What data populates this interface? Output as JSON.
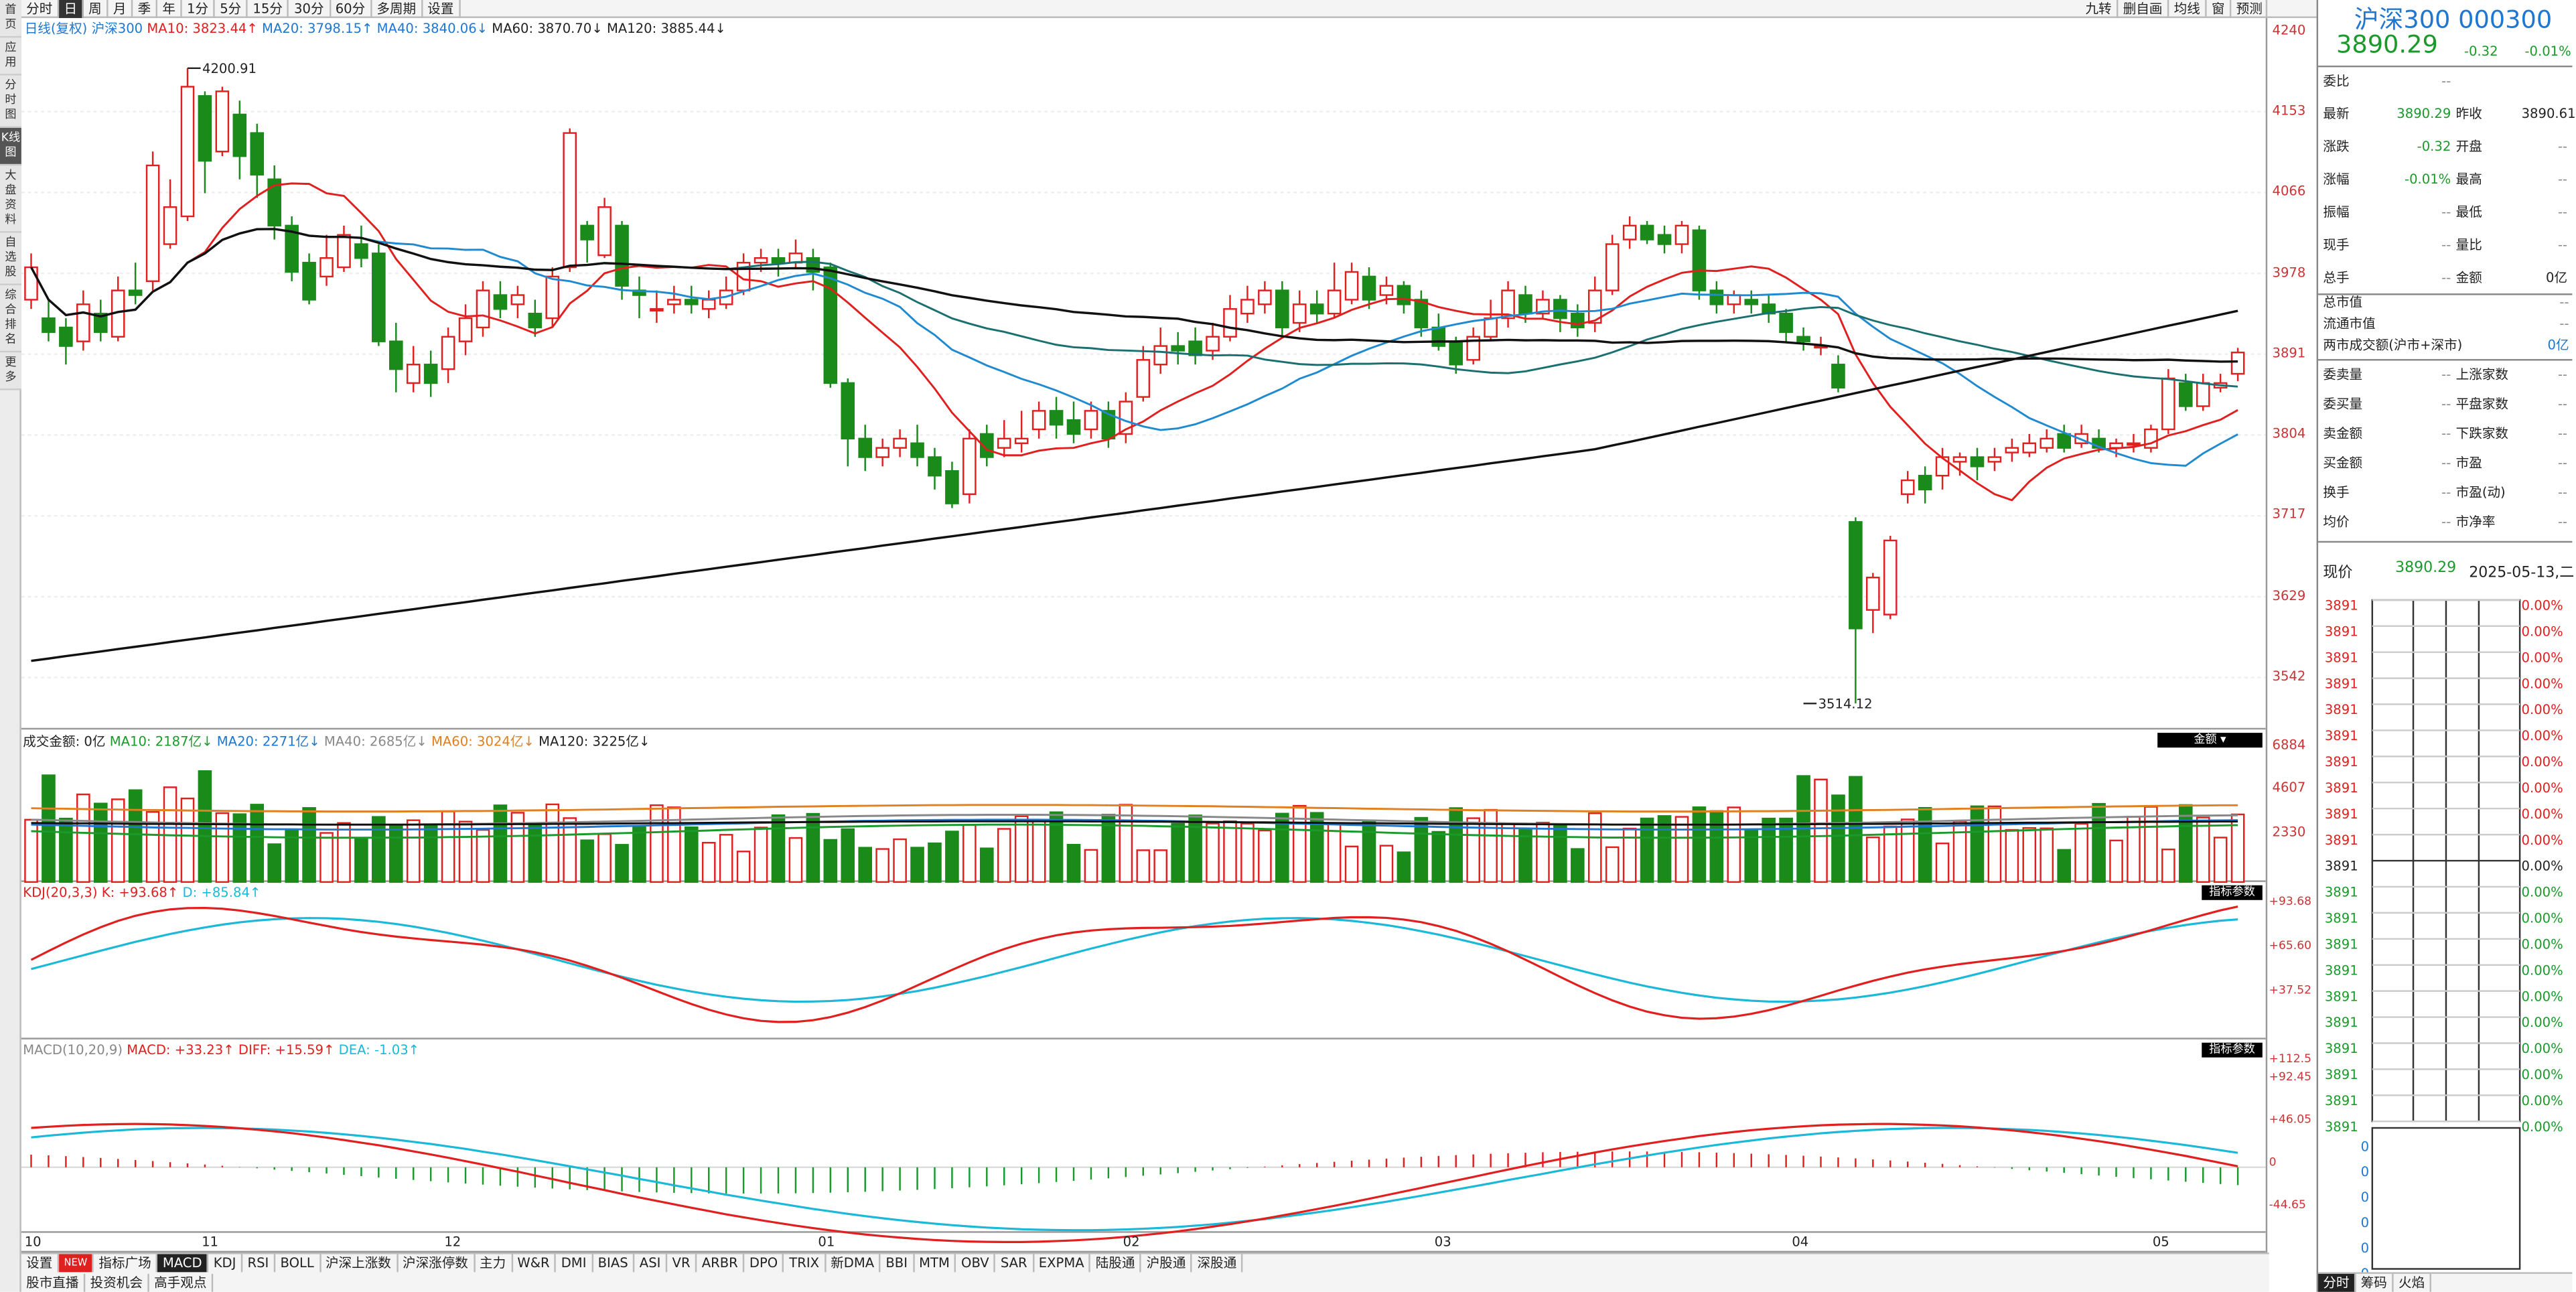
{
  "left_sidebar": [
    "首页",
    "应用",
    "分时图",
    "K线图",
    "大盘资料",
    "自选股",
    "综合排名",
    "更多"
  ],
  "toolbar": {
    "tabs": [
      "分时",
      "日",
      "周",
      "月",
      "季",
      "年",
      "1分",
      "5分",
      "15分",
      "30分",
      "60分",
      "多周期",
      "设置"
    ],
    "selected": "日",
    "right": [
      "九转",
      "删自画",
      "均线",
      "窗",
      "预测"
    ]
  },
  "header": {
    "period": "日线(复权)",
    "index": "沪深300",
    "ma10": "MA10: 3823.44↑",
    "ma20": "MA20: 3798.15↑",
    "ma40": "MA40: 3840.06↓",
    "ma60": "MA60: 3870.70↓",
    "ma120": "MA120: 3885.44↓"
  },
  "annotations": {
    "high": "4200.91",
    "low": "3514.12"
  },
  "price_axis": [
    "4240",
    "4153",
    "4066",
    "3978",
    "3891",
    "3804",
    "3717",
    "3629",
    "3542"
  ],
  "volume": {
    "title": "成交金额: 0亿",
    "ma10": "MA10: 2187亿↓",
    "ma20": "MA20: 2271亿↓",
    "ma40": "MA40: 2685亿↓",
    "ma60": "MA60: 3024亿↓",
    "ma120": "MA120: 3225亿↓",
    "axis": [
      "6884",
      "4607",
      "2330"
    ],
    "btn": "金额"
  },
  "kdj": {
    "title": "KDJ(20,3,3)",
    "k": "K: +93.68↑",
    "d": "D: +85.84↑",
    "axis": [
      "+93.68",
      "+65.60",
      "+37.52"
    ],
    "btn": "指标参数"
  },
  "macd": {
    "title": "MACD(10,20,9)",
    "macd": "MACD: +33.23↑",
    "diff": "DIFF: +15.59↑",
    "dea": "DEA: -1.03↑",
    "axis": [
      "+112.5",
      "+92.45",
      "+46.05",
      "0",
      "-44.65"
    ],
    "btn": "指标参数"
  },
  "date_axis": [
    "10",
    "11",
    "12",
    "01",
    "02",
    "03",
    "04",
    "05"
  ],
  "indicator_tabs": [
    "设置",
    "NEW",
    "指标广场",
    "MACD",
    "KDJ",
    "RSI",
    "BOLL",
    "沪深上涨数",
    "沪深涨停数",
    "主力",
    "W&R",
    "DMI",
    "BIAS",
    "ASI",
    "VR",
    "ARBR",
    "DPO",
    "TRIX",
    "新DMA",
    "BBI",
    "MTM",
    "OBV",
    "SAR",
    "EXPMA",
    "陆股通",
    "沪股通",
    "深股通"
  ],
  "selected_indicator": "MACD",
  "bottom_tabs": [
    "股市直播",
    "投资机会",
    "高手观点"
  ],
  "quote": {
    "name": "沪深300 000300",
    "price": "3890.29",
    "change": "-0.32",
    "pct": "-0.01%",
    "rows": [
      [
        "委比",
        "--",
        "",
        ""
      ],
      [
        "最新",
        "3890.29",
        "昨收",
        "3890.61"
      ],
      [
        "涨跌",
        "-0.32",
        "开盘",
        "--"
      ],
      [
        "涨幅",
        "-0.01%",
        "最高",
        "--"
      ],
      [
        "振幅",
        "--",
        "最低",
        "--"
      ],
      [
        "现手",
        "--",
        "量比",
        "--"
      ],
      [
        "总手",
        "--",
        "金额",
        "0亿"
      ]
    ],
    "rows2": [
      [
        "总市值",
        "--"
      ],
      [
        "流通市值",
        "--"
      ],
      [
        "两市成交额(沪市+深市)",
        "0亿"
      ]
    ],
    "rows3": [
      [
        "委卖量",
        "--",
        "上涨家数",
        "--"
      ],
      [
        "委买量",
        "--",
        "平盘家数",
        "--"
      ],
      [
        "卖金额",
        "--",
        "下跌家数",
        "--"
      ],
      [
        "买金额",
        "--",
        "市盈",
        "--"
      ],
      [
        "换手",
        "--",
        "市盈(动)",
        "--"
      ],
      [
        "均价",
        "--",
        "市净率",
        "--"
      ]
    ],
    "now_label": "现价",
    "now_price": "3890.29",
    "date": "2025-05-13,二"
  },
  "mini_chart": {
    "prices_top": [
      "3891",
      "3891",
      "3891",
      "3891",
      "3891",
      "3891",
      "3891",
      "3891",
      "3891",
      "3891"
    ],
    "mid": "3891",
    "prices_bot": [
      "3891",
      "3891",
      "3891",
      "3891",
      "3891",
      "3891",
      "3891",
      "3891",
      "3891",
      "3891"
    ],
    "pcts": "0.00%",
    "bottom_zeros": [
      "0",
      "0",
      "0",
      "0",
      "0",
      "0"
    ]
  },
  "right_bottom_tabs": [
    "分时",
    "筹码",
    "火焰"
  ],
  "chart_data": {
    "type": "candlestick",
    "ylim": [
      3500,
      4240
    ],
    "x_labels": [
      "10",
      "11",
      "12",
      "01",
      "02",
      "03",
      "04",
      "05"
    ],
    "candles": [
      [
        3950,
        3985,
        4000,
        3940
      ],
      [
        3930,
        3915,
        3950,
        3905
      ],
      [
        3920,
        3900,
        3930,
        3880
      ],
      [
        3905,
        3945,
        3960,
        3895
      ],
      [
        3935,
        3915,
        3950,
        3905
      ],
      [
        3910,
        3960,
        3975,
        3905
      ],
      [
        3960,
        3955,
        3990,
        3945
      ],
      [
        3970,
        4095,
        4110,
        3960
      ],
      [
        4010,
        4050,
        4080,
        4005
      ],
      [
        4040,
        4180,
        4200,
        4035
      ],
      [
        4170,
        4100,
        4175,
        4065
      ],
      [
        4110,
        4175,
        4180,
        4105
      ],
      [
        4150,
        4105,
        4165,
        4080
      ],
      [
        4130,
        4085,
        4140,
        4060
      ],
      [
        4080,
        4030,
        4095,
        4015
      ],
      [
        4030,
        3980,
        4040,
        3970
      ],
      [
        3990,
        3950,
        4000,
        3945
      ],
      [
        3975,
        3995,
        4020,
        3965
      ],
      [
        3985,
        4020,
        4030,
        3980
      ],
      [
        4010,
        3995,
        4030,
        3985
      ],
      [
        4000,
        3905,
        4010,
        3900
      ],
      [
        3905,
        3875,
        3925,
        3850
      ],
      [
        3860,
        3880,
        3900,
        3850
      ],
      [
        3880,
        3860,
        3895,
        3845
      ],
      [
        3875,
        3910,
        3920,
        3860
      ],
      [
        3905,
        3930,
        3945,
        3890
      ],
      [
        3920,
        3960,
        3970,
        3910
      ],
      [
        3955,
        3940,
        3970,
        3930
      ],
      [
        3945,
        3955,
        3965,
        3930
      ],
      [
        3935,
        3920,
        3950,
        3910
      ],
      [
        3930,
        3975,
        3985,
        3920
      ],
      [
        3985,
        4130,
        4135,
        3980
      ],
      [
        4030,
        4015,
        4035,
        3990
      ],
      [
        3998,
        4050,
        4060,
        3995
      ],
      [
        4030,
        3965,
        4035,
        3950
      ],
      [
        3960,
        3955,
        3975,
        3930
      ],
      [
        3940,
        3940,
        3960,
        3925
      ],
      [
        3945,
        3950,
        3965,
        3935
      ],
      [
        3950,
        3945,
        3965,
        3935
      ],
      [
        3940,
        3950,
        3960,
        3930
      ],
      [
        3945,
        3960,
        3975,
        3940
      ],
      [
        3960,
        3990,
        4000,
        3955
      ],
      [
        3990,
        3995,
        4005,
        3980
      ],
      [
        3995,
        3990,
        4005,
        3975
      ],
      [
        3990,
        4000,
        4015,
        3985
      ],
      [
        3995,
        3980,
        4005,
        3960
      ],
      [
        3985,
        3860,
        3990,
        3855
      ],
      [
        3860,
        3800,
        3865,
        3770
      ],
      [
        3800,
        3780,
        3815,
        3765
      ],
      [
        3780,
        3790,
        3800,
        3770
      ],
      [
        3790,
        3800,
        3810,
        3780
      ],
      [
        3795,
        3780,
        3815,
        3770
      ],
      [
        3780,
        3760,
        3790,
        3745
      ],
      [
        3765,
        3730,
        3775,
        3725
      ],
      [
        3740,
        3800,
        3810,
        3730
      ],
      [
        3805,
        3780,
        3815,
        3770
      ],
      [
        3790,
        3800,
        3820,
        3780
      ],
      [
        3795,
        3800,
        3830,
        3785
      ],
      [
        3810,
        3830,
        3840,
        3800
      ],
      [
        3830,
        3815,
        3845,
        3800
      ],
      [
        3820,
        3805,
        3840,
        3795
      ],
      [
        3810,
        3830,
        3840,
        3800
      ],
      [
        3830,
        3800,
        3840,
        3790
      ],
      [
        3805,
        3840,
        3850,
        3795
      ],
      [
        3845,
        3885,
        3900,
        3840
      ],
      [
        3880,
        3900,
        3920,
        3870
      ],
      [
        3900,
        3895,
        3915,
        3880
      ],
      [
        3905,
        3890,
        3920,
        3880
      ],
      [
        3895,
        3910,
        3925,
        3885
      ],
      [
        3910,
        3940,
        3955,
        3905
      ],
      [
        3935,
        3950,
        3965,
        3925
      ],
      [
        3945,
        3960,
        3970,
        3935
      ],
      [
        3960,
        3920,
        3970,
        3910
      ],
      [
        3925,
        3945,
        3960,
        3915
      ],
      [
        3945,
        3935,
        3960,
        3925
      ],
      [
        3935,
        3960,
        3990,
        3930
      ],
      [
        3950,
        3980,
        3990,
        3945
      ],
      [
        3975,
        3950,
        3985,
        3940
      ],
      [
        3955,
        3965,
        3975,
        3945
      ],
      [
        3965,
        3945,
        3970,
        3935
      ],
      [
        3950,
        3920,
        3960,
        3910
      ],
      [
        3920,
        3900,
        3935,
        3895
      ],
      [
        3905,
        3880,
        3910,
        3870
      ],
      [
        3885,
        3910,
        3920,
        3880
      ],
      [
        3910,
        3930,
        3950,
        3905
      ],
      [
        3930,
        3960,
        3970,
        3920
      ],
      [
        3955,
        3935,
        3965,
        3925
      ],
      [
        3935,
        3950,
        3960,
        3930
      ],
      [
        3950,
        3930,
        3955,
        3915
      ],
      [
        3935,
        3920,
        3945,
        3910
      ],
      [
        3925,
        3960,
        3975,
        3915
      ],
      [
        3960,
        4010,
        4020,
        3955
      ],
      [
        4015,
        4030,
        4040,
        4005
      ],
      [
        4030,
        4015,
        4035,
        4010
      ],
      [
        4020,
        4010,
        4030,
        4000
      ],
      [
        4010,
        4030,
        4035,
        4000
      ],
      [
        4025,
        3960,
        4030,
        3950
      ],
      [
        3960,
        3945,
        3970,
        3935
      ],
      [
        3945,
        3955,
        3960,
        3935
      ],
      [
        3950,
        3945,
        3960,
        3935
      ],
      [
        3945,
        3935,
        3955,
        3925
      ],
      [
        3935,
        3915,
        3940,
        3905
      ],
      [
        3910,
        3905,
        3920,
        3895
      ],
      [
        3900,
        3900,
        3910,
        3890
      ],
      [
        3880,
        3855,
        3890,
        3850
      ],
      [
        3710,
        3595,
        3715,
        3514
      ],
      [
        3615,
        3650,
        3655,
        3590
      ],
      [
        3610,
        3690,
        3695,
        3605
      ],
      [
        3740,
        3755,
        3765,
        3730
      ],
      [
        3760,
        3745,
        3770,
        3730
      ],
      [
        3760,
        3780,
        3790,
        3745
      ],
      [
        3775,
        3780,
        3785,
        3760
      ],
      [
        3780,
        3770,
        3790,
        3755
      ],
      [
        3775,
        3780,
        3790,
        3765
      ],
      [
        3785,
        3790,
        3800,
        3775
      ],
      [
        3785,
        3795,
        3805,
        3780
      ],
      [
        3790,
        3800,
        3810,
        3785
      ],
      [
        3805,
        3790,
        3815,
        3785
      ],
      [
        3795,
        3805,
        3815,
        3790
      ],
      [
        3800,
        3790,
        3810,
        3785
      ],
      [
        3790,
        3795,
        3800,
        3780
      ],
      [
        3795,
        3795,
        3805,
        3785
      ],
      [
        3790,
        3810,
        3815,
        3785
      ],
      [
        3810,
        3865,
        3875,
        3805
      ],
      [
        3860,
        3835,
        3870,
        3830
      ],
      [
        3835,
        3860,
        3870,
        3830
      ],
      [
        3855,
        3860,
        3870,
        3850
      ],
      [
        3870,
        3893,
        3898,
        3862
      ]
    ]
  }
}
